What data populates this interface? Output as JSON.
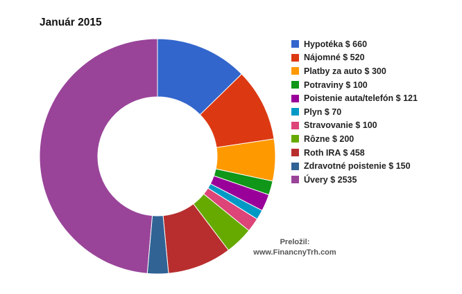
{
  "chart_data": {
    "type": "pie",
    "variant": "donut",
    "title": "Január 2015",
    "legend_position": "right",
    "slices": [
      {
        "label": "Hypotéka $ 660",
        "value": 660,
        "color": "#3366cc"
      },
      {
        "label": "Nájomné $ 520",
        "value": 520,
        "color": "#dc3912"
      },
      {
        "label": "Platby za auto $ 300",
        "value": 300,
        "color": "#ff9900"
      },
      {
        "label": "Potraviny $ 100",
        "value": 100,
        "color": "#109618"
      },
      {
        "label": "Poistenie auta/telefón $ 121",
        "value": 121,
        "color": "#990099"
      },
      {
        "label": "Plyn $ 70",
        "value": 70,
        "color": "#0099c6"
      },
      {
        "label": "Stravovanie $ 100",
        "value": 100,
        "color": "#dd4477"
      },
      {
        "label": "Rôzne $ 200",
        "value": 200,
        "color": "#66aa00"
      },
      {
        "label": "Roth IRA $ 458",
        "value": 458,
        "color": "#b82e2e"
      },
      {
        "label": "Zdravotné poistenie $ 150",
        "value": 150,
        "color": "#316395"
      },
      {
        "label": "Úvery $ 2535",
        "value": 2535,
        "color": "#994499"
      }
    ]
  },
  "credit": {
    "line1": "Preložil:",
    "line2": "www.FinancnyTrh.com"
  }
}
